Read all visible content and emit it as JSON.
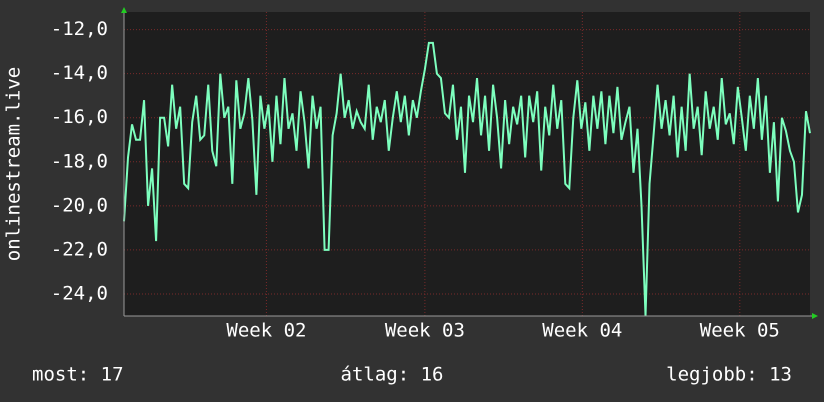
{
  "chart_data": {
    "type": "line",
    "y_label": "onlinestream.live",
    "color": "#7dffbe",
    "grid": true,
    "ylim": [
      -25,
      -11.2
    ],
    "yticks": [
      {
        "value": -12,
        "label": "-12,0"
      },
      {
        "value": -14,
        "label": "-14,0"
      },
      {
        "value": -16,
        "label": "-16,0"
      },
      {
        "value": -18,
        "label": "-18,0"
      },
      {
        "value": -20,
        "label": "-20,0"
      },
      {
        "value": -22,
        "label": "-22,0"
      },
      {
        "value": -24,
        "label": "-24,0"
      }
    ],
    "xlim": [
      0,
      171
    ],
    "xticks": [
      {
        "value": 35.5,
        "label": "Week 02"
      },
      {
        "value": 75,
        "label": "Week 03"
      },
      {
        "value": 114.25,
        "label": "Week 04"
      },
      {
        "value": 153.5,
        "label": "Week 05"
      }
    ],
    "values": [
      -20.7,
      -17.8,
      -16.3,
      -17,
      -17,
      -15.2,
      -20,
      -18.3,
      -21.6,
      -16,
      -16,
      -17.3,
      -14.5,
      -16.5,
      -15.5,
      -19,
      -19.2,
      -16.2,
      -15,
      -17,
      -16.8,
      -14.5,
      -17.5,
      -18.2,
      -14,
      -16,
      -15.5,
      -19,
      -14.3,
      -16.5,
      -15.8,
      -14.2,
      -16.1,
      -19.5,
      -15,
      -16.5,
      -15.4,
      -18,
      -15,
      -17.2,
      -14.2,
      -16.5,
      -15.8,
      -17.5,
      -14.8,
      -16.2,
      -18.3,
      -15,
      -16.5,
      -15.5,
      -22,
      -22,
      -16.8,
      -15.8,
      -14,
      -16,
      -15.2,
      -16.5,
      -15.7,
      -16.2,
      -16.5,
      -14.5,
      -17,
      -15.5,
      -16.2,
      -15.2,
      -17.5,
      -16,
      -14.8,
      -16.2,
      -15,
      -16.8,
      -15.2,
      -16,
      -14.8,
      -13.8,
      -12.6,
      -12.6,
      -14,
      -14.2,
      -15.8,
      -16,
      -14.5,
      -17,
      -15.5,
      -18.5,
      -15,
      -16.2,
      -14.2,
      -16.8,
      -15,
      -17.5,
      -14.5,
      -16,
      -18.3,
      -15.2,
      -17.2,
      -15.5,
      -16.3,
      -15,
      -17.8,
      -15,
      -16.2,
      -14.8,
      -18.4,
      -15.5,
      -16.8,
      -14.5,
      -16.5,
      -15.2,
      -19,
      -19.2,
      -16,
      -14.3,
      -16.5,
      -15.3,
      -17.5,
      -15,
      -16.5,
      -14.8,
      -17.2,
      -15,
      -16.7,
      -14.6,
      -17,
      -16.2,
      -15.5,
      -18.5,
      -16.5,
      -20,
      -25,
      -19,
      -16.8,
      -14.5,
      -16.5,
      -15.2,
      -16.8,
      -15,
      -17.8,
      -15.5,
      -17.5,
      -14,
      -16.5,
      -15.5,
      -17.7,
      -14.8,
      -16.5,
      -15.5,
      -17,
      -14.2,
      -16.3,
      -15.8,
      -17.2,
      -14.6,
      -16,
      -17.5,
      -15,
      -16.5,
      -14.2,
      -17,
      -15,
      -18.5,
      -16.2,
      -19.8,
      -16,
      -16.6,
      -17.5,
      -18,
      -20.3,
      -19.5,
      -15.7,
      -16.7
    ]
  },
  "footer": {
    "current": "most: 17",
    "average": "átlag: 16",
    "best": "legjobb: 13"
  }
}
